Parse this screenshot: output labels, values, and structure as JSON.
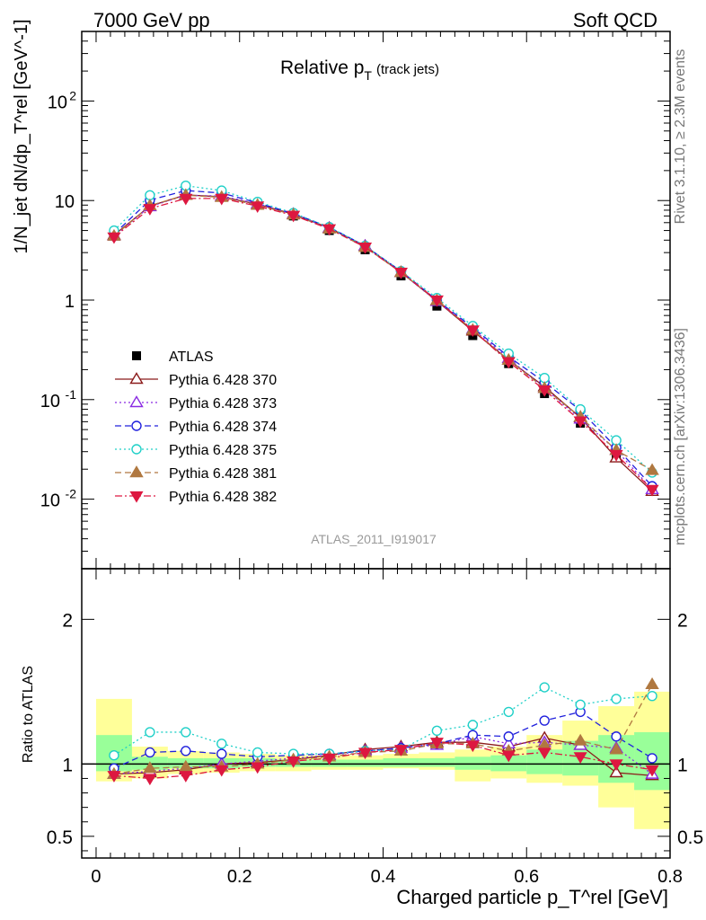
{
  "header": {
    "energy_label": "7000 GeV pp",
    "category_label": "Soft QCD"
  },
  "side": {
    "rivet_label": "Rivet 3.1.10, ≥ 2.3M events",
    "source_label": "mcplots.cern.ch [arXiv:1306.3436]"
  },
  "analysis_id": "ATLAS_2011_I919017",
  "colors": {
    "atlas": "#000000",
    "p370": "#8b1a1a",
    "p373": "#8a2be2",
    "p374": "#2020dd",
    "p375": "#20d0c8",
    "p381": "#b07840",
    "p382": "#dd1840",
    "band_inner": "#99ff99",
    "band_outer": "#ffff99"
  },
  "chart_data": [
    {
      "type": "scatter",
      "panel": "main",
      "title_main": "Relative p",
      "title_sub": "T",
      "title_note": "(track jets)",
      "ylabel": "1/N_jet dN/dp_T^rel [GeV^-1]",
      "yscale": "log",
      "ylim": [
        0.002,
        500
      ],
      "xlim": [
        -0.02,
        0.8
      ],
      "yticks": [
        {
          "value": 0.01,
          "base": "10",
          "exp": "-2"
        },
        {
          "value": 0.1,
          "base": "10",
          "exp": "-1"
        },
        {
          "value": 1,
          "base": "1",
          "exp": ""
        },
        {
          "value": 10,
          "base": "10",
          "exp": ""
        },
        {
          "value": 100,
          "base": "10",
          "exp": "2"
        }
      ],
      "x": [
        0.025,
        0.075,
        0.125,
        0.175,
        0.225,
        0.275,
        0.325,
        0.375,
        0.425,
        0.475,
        0.525,
        0.575,
        0.625,
        0.675,
        0.725,
        0.775
      ],
      "series": [
        {
          "key": "atlas",
          "name": "ATLAS",
          "marker": "square",
          "line": "none",
          "values": [
            4.7,
            9.2,
            11.5,
            11.1,
            9.0,
            7.0,
            5.0,
            3.2,
            1.75,
            0.87,
            0.44,
            0.23,
            0.115,
            0.058,
            0.028,
            0.013
          ]
        },
        {
          "key": "p370",
          "name": "Pythia 6.428 370",
          "marker": "triangle-open",
          "line": "solid",
          "values": [
            4.5,
            8.8,
            11.4,
            10.9,
            9.2,
            7.3,
            5.3,
            3.5,
            1.9,
            0.98,
            0.49,
            0.25,
            0.135,
            0.066,
            0.026,
            0.012
          ]
        },
        {
          "key": "p373",
          "name": "Pythia 6.428 373",
          "marker": "triangle-open",
          "line": "dotted",
          "values": [
            4.4,
            8.7,
            11.3,
            11.1,
            9.3,
            7.3,
            5.3,
            3.5,
            1.9,
            0.97,
            0.51,
            0.26,
            0.13,
            0.064,
            0.031,
            0.0125
          ]
        },
        {
          "key": "p374",
          "name": "Pythia 6.428 374",
          "marker": "circle-open",
          "line": "dashed",
          "values": [
            4.6,
            10.1,
            12.6,
            11.9,
            9.5,
            7.4,
            5.4,
            3.5,
            1.95,
            1.0,
            0.53,
            0.27,
            0.15,
            0.078,
            0.033,
            0.0135
          ]
        },
        {
          "key": "p375",
          "name": "Pythia 6.428 375",
          "marker": "circle-open",
          "line": "dotted",
          "values": [
            5.0,
            11.3,
            14.1,
            12.6,
            9.7,
            7.5,
            5.4,
            3.5,
            1.95,
            1.05,
            0.55,
            0.29,
            0.165,
            0.08,
            0.039,
            0.0185
          ]
        },
        {
          "key": "p381",
          "name": "Pythia 6.428 381",
          "marker": "triangle-filled",
          "line": "dashed",
          "values": [
            4.4,
            8.9,
            11.3,
            10.8,
            9.0,
            7.2,
            5.2,
            3.4,
            1.9,
            0.99,
            0.5,
            0.25,
            0.13,
            0.067,
            0.031,
            0.0195
          ]
        },
        {
          "key": "p382",
          "name": "Pythia 6.428 382",
          "marker": "triangle-down-filled",
          "line": "dashdot",
          "values": [
            4.3,
            8.3,
            10.5,
            10.5,
            8.8,
            7.1,
            5.2,
            3.4,
            1.9,
            1.0,
            0.5,
            0.24,
            0.125,
            0.061,
            0.028,
            0.0125
          ]
        }
      ]
    },
    {
      "type": "line",
      "panel": "ratio",
      "ylabel": "Ratio to ATLAS",
      "xlabel": "Charged particle p_T^rel [GeV]",
      "xlim": [
        -0.02,
        0.8
      ],
      "ylim": [
        0.35,
        2.35
      ],
      "yticks": [
        0.5,
        1,
        2
      ],
      "xticks": [
        0,
        0.2,
        0.4,
        0.6,
        0.8
      ],
      "x": [
        0.025,
        0.075,
        0.125,
        0.175,
        0.225,
        0.275,
        0.325,
        0.375,
        0.425,
        0.475,
        0.525,
        0.575,
        0.625,
        0.675,
        0.725,
        0.775
      ],
      "band_bins": [
        0,
        0.05,
        0.1,
        0.15,
        0.2,
        0.25,
        0.3,
        0.35,
        0.4,
        0.45,
        0.5,
        0.55,
        0.6,
        0.65,
        0.7,
        0.75,
        0.8
      ],
      "band_outer": [
        [
          0.88,
          1.45
        ],
        [
          0.9,
          1.12
        ],
        [
          0.93,
          1.09
        ],
        [
          0.94,
          1.08
        ],
        [
          0.95,
          1.07
        ],
        [
          0.95,
          1.06
        ],
        [
          0.96,
          1.06
        ],
        [
          0.96,
          1.06
        ],
        [
          0.97,
          1.07
        ],
        [
          0.96,
          1.08
        ],
        [
          0.88,
          1.1
        ],
        [
          0.9,
          1.12
        ],
        [
          0.87,
          1.2
        ],
        [
          0.85,
          1.3
        ],
        [
          0.7,
          1.4
        ],
        [
          0.55,
          1.5
        ]
      ],
      "band_inner": [
        [
          0.95,
          1.2
        ],
        [
          0.96,
          1.05
        ],
        [
          0.97,
          1.04
        ],
        [
          0.97,
          1.04
        ],
        [
          0.98,
          1.04
        ],
        [
          0.98,
          1.03
        ],
        [
          0.98,
          1.03
        ],
        [
          0.98,
          1.03
        ],
        [
          0.98,
          1.04
        ],
        [
          0.98,
          1.04
        ],
        [
          0.96,
          1.05
        ],
        [
          0.95,
          1.06
        ],
        [
          0.93,
          1.1
        ],
        [
          0.92,
          1.16
        ],
        [
          0.87,
          1.2
        ],
        [
          0.82,
          1.22
        ]
      ],
      "series": [
        {
          "key": "p370",
          "values": [
            0.93,
            0.94,
            0.96,
            1.0,
            1.01,
            1.03,
            1.06,
            1.1,
            1.12,
            1.15,
            1.15,
            1.12,
            1.18,
            1.13,
            0.94,
            0.92
          ]
        },
        {
          "key": "p373",
          "values": [
            0.93,
            0.95,
            0.97,
            1.0,
            1.02,
            1.04,
            1.06,
            1.09,
            1.11,
            1.13,
            1.19,
            1.14,
            1.15,
            1.13,
            1.11,
            0.93
          ]
        },
        {
          "key": "p374",
          "values": [
            0.97,
            1.08,
            1.09,
            1.07,
            1.05,
            1.06,
            1.07,
            1.09,
            1.11,
            1.14,
            1.2,
            1.19,
            1.3,
            1.36,
            1.19,
            1.04
          ]
        },
        {
          "key": "p375",
          "values": [
            1.06,
            1.22,
            1.22,
            1.14,
            1.08,
            1.07,
            1.07,
            1.09,
            1.1,
            1.23,
            1.27,
            1.36,
            1.53,
            1.41,
            1.45,
            1.47
          ]
        },
        {
          "key": "p381",
          "values": [
            0.93,
            0.97,
            0.98,
            0.98,
            1.0,
            1.03,
            1.05,
            1.08,
            1.09,
            1.14,
            1.14,
            1.09,
            1.13,
            1.16,
            1.1,
            1.55
          ]
        },
        {
          "key": "p382",
          "values": [
            0.92,
            0.9,
            0.92,
            0.96,
            0.98,
            1.02,
            1.04,
            1.08,
            1.1,
            1.15,
            1.13,
            1.06,
            1.08,
            1.05,
            1.0,
            0.96
          ]
        }
      ]
    }
  ]
}
